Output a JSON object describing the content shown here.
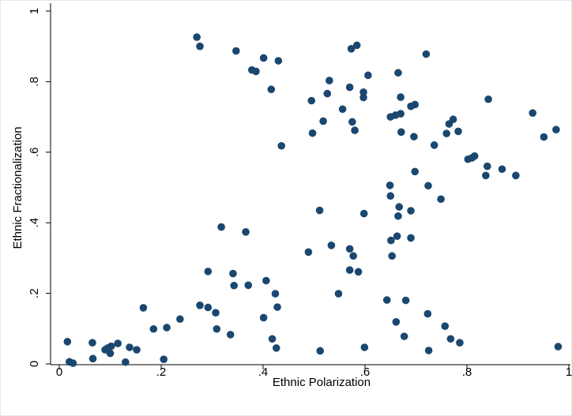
{
  "chart_data": {
    "type": "scatter",
    "xlabel": "Ethnic Polarization",
    "ylabel": "Ethnic Fractionalization",
    "xlim": [
      0,
      1
    ],
    "ylim": [
      0,
      1
    ],
    "xticks": [
      {
        "value": 0,
        "label": "0"
      },
      {
        "value": 0.2,
        "label": ".2"
      },
      {
        "value": 0.4,
        "label": ".4"
      },
      {
        "value": 0.6,
        "label": ".6"
      },
      {
        "value": 0.8,
        "label": ".8"
      },
      {
        "value": 1,
        "label": "1"
      }
    ],
    "yticks": [
      {
        "value": 0,
        "label": "0"
      },
      {
        "value": 0.2,
        "label": ".2"
      },
      {
        "value": 0.4,
        "label": ".4"
      },
      {
        "value": 0.6,
        "label": ".6"
      },
      {
        "value": 0.8,
        "label": ".8"
      },
      {
        "value": 1,
        "label": "1"
      }
    ],
    "grid": false,
    "marker_color": "#1a476f",
    "points": [
      [
        0.016,
        0.063
      ],
      [
        0.02,
        0.006
      ],
      [
        0.027,
        0.002
      ],
      [
        0.065,
        0.06
      ],
      [
        0.066,
        0.015
      ],
      [
        0.09,
        0.04
      ],
      [
        0.095,
        0.045
      ],
      [
        0.1,
        0.03
      ],
      [
        0.102,
        0.05
      ],
      [
        0.115,
        0.058
      ],
      [
        0.13,
        0.005
      ],
      [
        0.138,
        0.047
      ],
      [
        0.152,
        0.04
      ],
      [
        0.165,
        0.159
      ],
      [
        0.185,
        0.099
      ],
      [
        0.205,
        0.013
      ],
      [
        0.211,
        0.103
      ],
      [
        0.237,
        0.127
      ],
      [
        0.27,
        0.926
      ],
      [
        0.276,
        0.9
      ],
      [
        0.276,
        0.166
      ],
      [
        0.292,
        0.262
      ],
      [
        0.292,
        0.16
      ],
      [
        0.307,
        0.145
      ],
      [
        0.309,
        0.099
      ],
      [
        0.318,
        0.388
      ],
      [
        0.336,
        0.083
      ],
      [
        0.341,
        0.256
      ],
      [
        0.343,
        0.222
      ],
      [
        0.347,
        0.887
      ],
      [
        0.366,
        0.374
      ],
      [
        0.371,
        0.223
      ],
      [
        0.378,
        0.833
      ],
      [
        0.386,
        0.829
      ],
      [
        0.401,
        0.867
      ],
      [
        0.401,
        0.131
      ],
      [
        0.406,
        0.236
      ],
      [
        0.416,
        0.778
      ],
      [
        0.418,
        0.071
      ],
      [
        0.424,
        0.199
      ],
      [
        0.426,
        0.045
      ],
      [
        0.428,
        0.161
      ],
      [
        0.43,
        0.859
      ],
      [
        0.436,
        0.618
      ],
      [
        0.489,
        0.317
      ],
      [
        0.495,
        0.746
      ],
      [
        0.497,
        0.654
      ],
      [
        0.511,
        0.435
      ],
      [
        0.512,
        0.037
      ],
      [
        0.518,
        0.688
      ],
      [
        0.526,
        0.766
      ],
      [
        0.53,
        0.803
      ],
      [
        0.534,
        0.336
      ],
      [
        0.548,
        0.199
      ],
      [
        0.556,
        0.722
      ],
      [
        0.57,
        0.784
      ],
      [
        0.57,
        0.326
      ],
      [
        0.57,
        0.266
      ],
      [
        0.573,
        0.893
      ],
      [
        0.575,
        0.686
      ],
      [
        0.577,
        0.306
      ],
      [
        0.58,
        0.662
      ],
      [
        0.584,
        0.903
      ],
      [
        0.587,
        0.261
      ],
      [
        0.597,
        0.77
      ],
      [
        0.597,
        0.755
      ],
      [
        0.598,
        0.426
      ],
      [
        0.599,
        0.047
      ],
      [
        0.606,
        0.818
      ],
      [
        0.643,
        0.181
      ],
      [
        0.649,
        0.506
      ],
      [
        0.65,
        0.476
      ],
      [
        0.65,
        0.7
      ],
      [
        0.651,
        0.35
      ],
      [
        0.653,
        0.306
      ],
      [
        0.66,
        0.705
      ],
      [
        0.661,
        0.119
      ],
      [
        0.663,
        0.362
      ],
      [
        0.665,
        0.825
      ],
      [
        0.665,
        0.419
      ],
      [
        0.667,
        0.445
      ],
      [
        0.67,
        0.709
      ],
      [
        0.67,
        0.756
      ],
      [
        0.671,
        0.657
      ],
      [
        0.677,
        0.078
      ],
      [
        0.68,
        0.18
      ],
      [
        0.69,
        0.73
      ],
      [
        0.69,
        0.357
      ],
      [
        0.69,
        0.434
      ],
      [
        0.696,
        0.644
      ],
      [
        0.698,
        0.735
      ],
      [
        0.698,
        0.545
      ],
      [
        0.72,
        0.878
      ],
      [
        0.723,
        0.142
      ],
      [
        0.724,
        0.505
      ],
      [
        0.725,
        0.038
      ],
      [
        0.736,
        0.62
      ],
      [
        0.749,
        0.467
      ],
      [
        0.757,
        0.107
      ],
      [
        0.76,
        0.653
      ],
      [
        0.765,
        0.68
      ],
      [
        0.768,
        0.071
      ],
      [
        0.773,
        0.693
      ],
      [
        0.783,
        0.659
      ],
      [
        0.786,
        0.06
      ],
      [
        0.802,
        0.58
      ],
      [
        0.81,
        0.584
      ],
      [
        0.815,
        0.589
      ],
      [
        0.837,
        0.534
      ],
      [
        0.84,
        0.56
      ],
      [
        0.842,
        0.75
      ],
      [
        0.869,
        0.552
      ],
      [
        0.896,
        0.534
      ],
      [
        0.929,
        0.711
      ],
      [
        0.951,
        0.643
      ],
      [
        0.975,
        0.664
      ],
      [
        0.979,
        0.049
      ]
    ]
  }
}
